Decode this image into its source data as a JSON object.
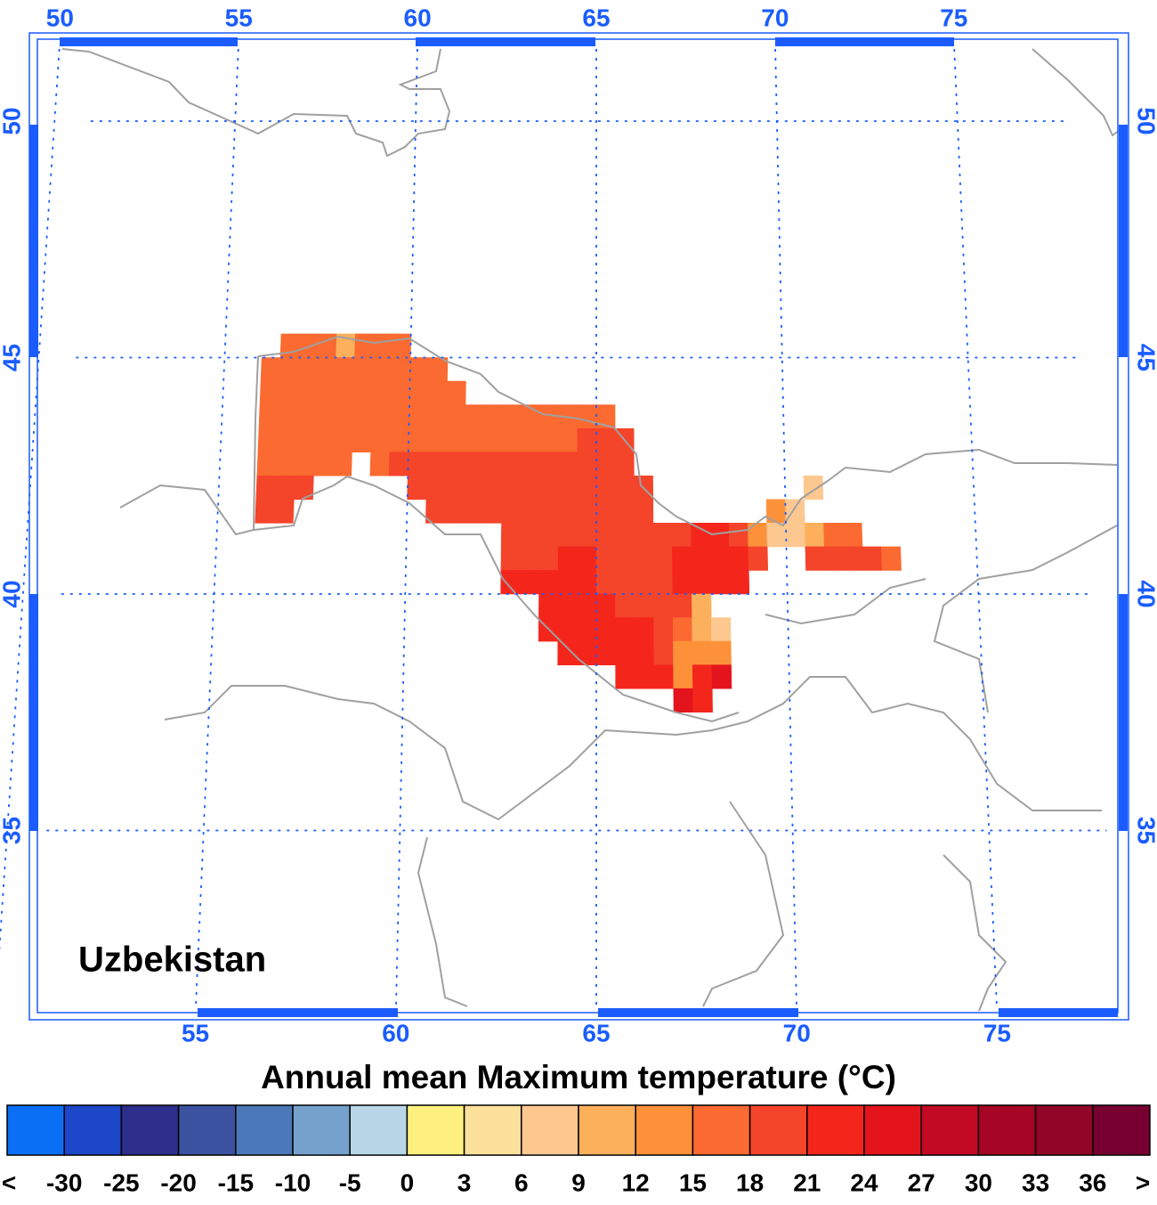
{
  "map": {
    "title": "Annual mean Maximum temperature (°C)",
    "label": "Uzbekistan",
    "lon_ticks": [
      50,
      55,
      60,
      65,
      70,
      75
    ],
    "lat_ticks": [
      50,
      45,
      40,
      35
    ],
    "grid": true,
    "colorbar": {
      "below_label": "<",
      "above_label": ">",
      "levels": [
        -30,
        -25,
        -20,
        -15,
        -10,
        -5,
        0,
        3,
        6,
        9,
        12,
        15,
        18,
        21,
        24,
        27,
        30,
        33,
        36
      ],
      "colors": [
        "#0a6ff5",
        "#1c47c8",
        "#2e2e8c",
        "#3a52a0",
        "#4a78b8",
        "#74a2cc",
        "#b8d6e8",
        "#fdf07e",
        "#fde09c",
        "#fdc890",
        "#fdb05c",
        "#fd913a",
        "#fb6a30",
        "#f4442a",
        "#f4261c",
        "#e4141c",
        "#c20a24",
        "#a60424",
        "#920428",
        "#780030"
      ]
    },
    "cells": [
      {
        "lat": 45.0,
        "lon": 56.5,
        "values": [
          16,
          16,
          16,
          10,
          16,
          16,
          16
        ]
      },
      {
        "lat": 44.5,
        "lon": 56.0,
        "values": [
          16,
          16,
          16,
          16,
          16,
          16,
          16,
          16,
          16,
          16
        ]
      },
      {
        "lat": 44.0,
        "lon": 56.0,
        "values": [
          16,
          16,
          16,
          16,
          16,
          16,
          16,
          16,
          16,
          16,
          16
        ]
      },
      {
        "lat": 43.5,
        "lon": 56.0,
        "values": [
          16,
          16,
          16,
          16,
          16,
          16,
          16,
          16,
          16,
          16,
          16,
          16,
          16,
          16,
          16,
          16,
          16,
          16,
          16
        ]
      },
      {
        "lat": 43.0,
        "lon": 56.0,
        "values": [
          16,
          16,
          16,
          16,
          16,
          16,
          16,
          16,
          16,
          16,
          16,
          16,
          16,
          16,
          16,
          16,
          16,
          19,
          19,
          19
        ]
      },
      {
        "lat": 42.5,
        "lon": 56.0,
        "values": [
          16,
          16,
          16,
          16,
          16,
          null,
          16,
          19,
          19,
          19,
          19,
          19,
          19,
          19,
          19,
          19,
          19,
          19,
          19,
          19
        ]
      },
      {
        "lat": 42.0,
        "lon": 56.0,
        "values": [
          19,
          19,
          19,
          null,
          null,
          null,
          null,
          null,
          19,
          19,
          19,
          19,
          19,
          19,
          19,
          19,
          19,
          19,
          19,
          19,
          19,
          null,
          null,
          null,
          null,
          null,
          null,
          null,
          null,
          7
        ]
      },
      {
        "lat": 41.5,
        "lon": 56.0,
        "values": [
          19,
          19,
          null,
          null,
          null,
          null,
          null,
          null,
          null,
          19,
          19,
          19,
          19,
          19,
          19,
          19,
          19,
          19,
          19,
          19,
          19,
          null,
          null,
          null,
          null,
          null,
          null,
          13,
          7
        ]
      },
      {
        "lat": 41.0,
        "lon": 62.5,
        "values": [
          19,
          19,
          19,
          19,
          19,
          19,
          19,
          19,
          19,
          19,
          22,
          22,
          19,
          13,
          7,
          7,
          10,
          16,
          16
        ]
      },
      {
        "lat": 40.5,
        "lon": 62.5,
        "values": [
          19,
          19,
          19,
          22,
          22,
          19,
          19,
          19,
          19,
          22,
          22,
          22,
          22,
          19,
          null,
          null,
          19,
          19,
          19,
          19,
          16
        ]
      },
      {
        "lat": 40.0,
        "lon": 62.5,
        "values": [
          22,
          22,
          22,
          22,
          22,
          19,
          19,
          19,
          19,
          22,
          22,
          22,
          22
        ]
      },
      {
        "lat": 39.5,
        "lon": 63.5,
        "values": [
          22,
          22,
          22,
          22,
          19,
          19,
          19,
          19,
          10
        ]
      },
      {
        "lat": 39.0,
        "lon": 63.5,
        "values": [
          22,
          22,
          22,
          22,
          22,
          22,
          19,
          16,
          10,
          7
        ]
      },
      {
        "lat": 38.5,
        "lon": 64.0,
        "values": [
          22,
          22,
          22,
          22,
          22,
          19,
          13,
          13,
          13
        ]
      },
      {
        "lat": 38.0,
        "lon": 65.5,
        "values": [
          22,
          22,
          22,
          13,
          22,
          25
        ]
      },
      {
        "lat": 37.5,
        "lon": 67.0,
        "values": [
          25,
          22
        ]
      }
    ]
  }
}
